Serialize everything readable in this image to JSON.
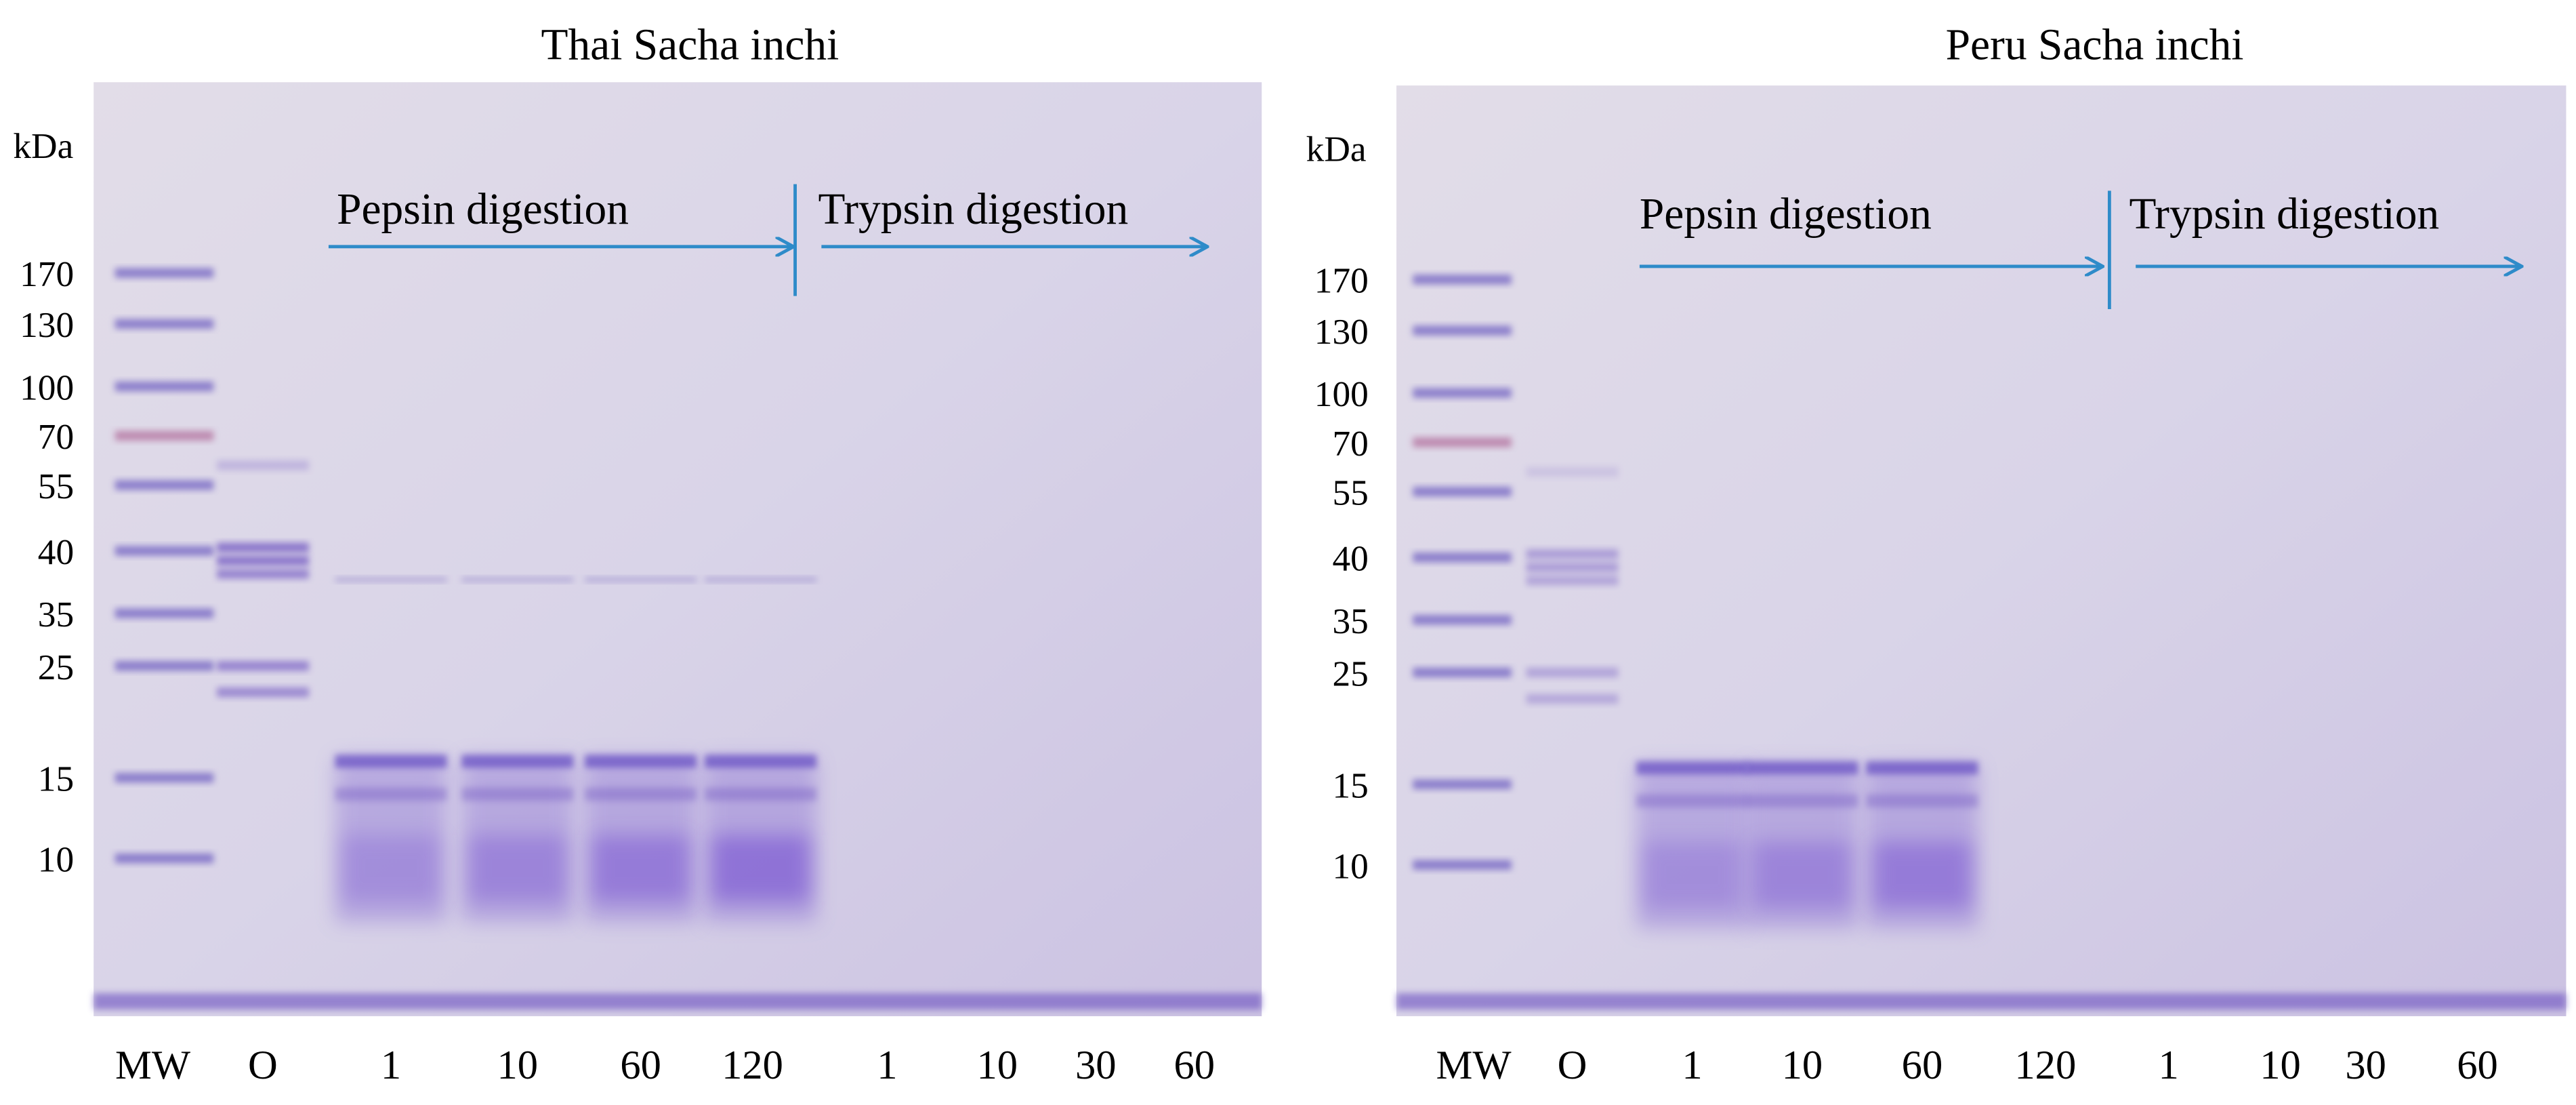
{
  "panels": [
    {
      "title": "Thai Sacha inchi",
      "unit": "kDa",
      "markers": [
        170,
        130,
        100,
        70,
        55,
        40,
        35,
        25,
        15,
        10
      ],
      "pepsin_label": "Pepsin digestion",
      "trypsin_label": "Trypsin digestion",
      "lanes": [
        "MW",
        "O",
        "1",
        "10",
        "60",
        "120",
        "1",
        "10",
        "30",
        "60"
      ]
    },
    {
      "title": "Peru Sacha inchi",
      "unit": "kDa",
      "markers": [
        170,
        130,
        100,
        70,
        55,
        40,
        35,
        25,
        15,
        10
      ],
      "pepsin_label": "Pepsin digestion",
      "trypsin_label": "Trypsin digestion",
      "lanes": [
        "MW",
        "O",
        "1",
        "10",
        "60",
        "120",
        "1",
        "10",
        "30",
        "60"
      ]
    }
  ]
}
